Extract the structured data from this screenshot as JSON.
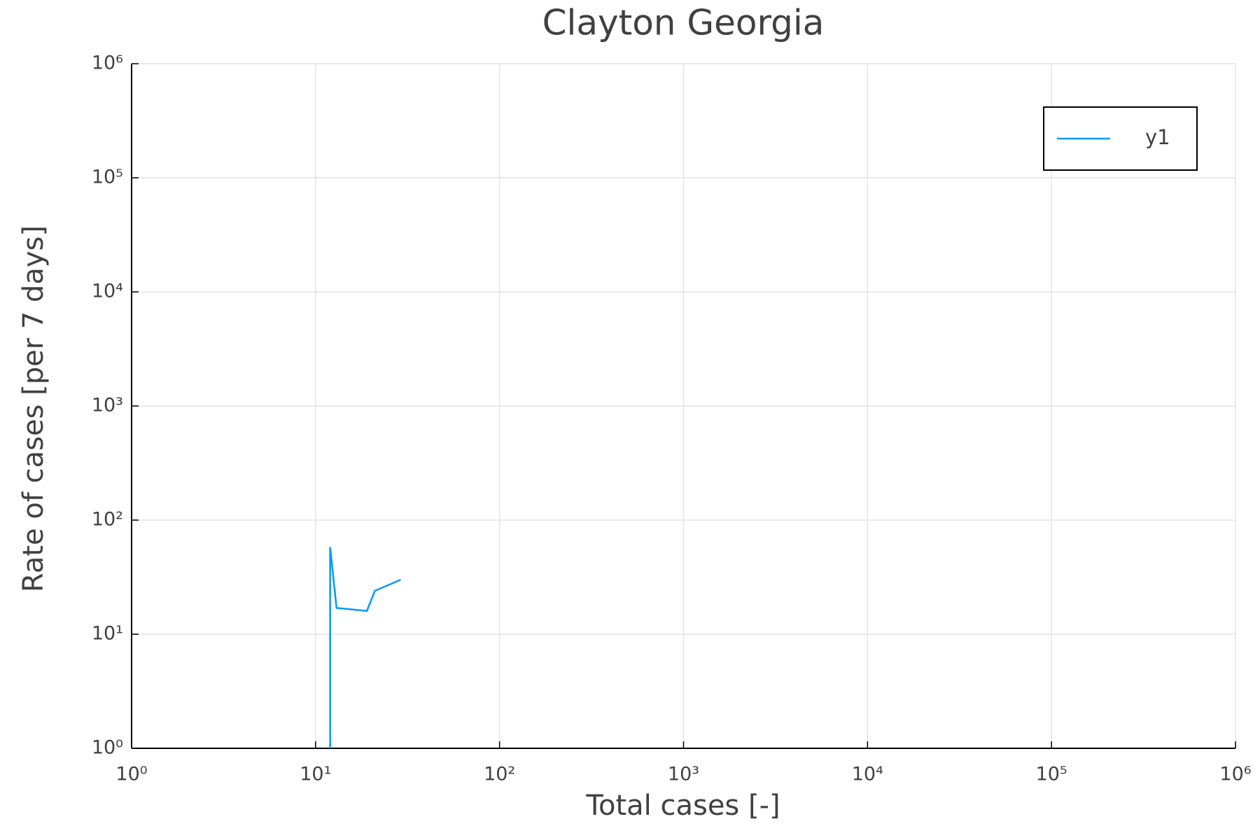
{
  "chart_data": {
    "type": "line",
    "title": "Clayton Georgia",
    "x_label": "Total cases [-]",
    "y_label": "Rate of cases [per 7 days]",
    "x": [
      12,
      12,
      13,
      19,
      21,
      29
    ],
    "series": [
      {
        "name": "y1",
        "color": "#009af9",
        "values": [
          1,
          58,
          17,
          16,
          24,
          30
        ]
      }
    ],
    "xscale": "log",
    "yscale": "log",
    "xlim": [
      1,
      1000000
    ],
    "ylim": [
      1,
      1000000
    ],
    "xticks": [
      {
        "value": 1,
        "label": "10⁰"
      },
      {
        "value": 10,
        "label": "10¹"
      },
      {
        "value": 100,
        "label": "10²"
      },
      {
        "value": 1000,
        "label": "10³"
      },
      {
        "value": 10000,
        "label": "10⁴"
      },
      {
        "value": 100000,
        "label": "10⁵"
      },
      {
        "value": 1000000,
        "label": "10⁶"
      }
    ],
    "yticks": [
      {
        "value": 1,
        "label": "10⁰"
      },
      {
        "value": 10,
        "label": "10¹"
      },
      {
        "value": 100,
        "label": "10²"
      },
      {
        "value": 1000,
        "label": "10³"
      },
      {
        "value": 10000,
        "label": "10⁴"
      },
      {
        "value": 100000,
        "label": "10⁵"
      },
      {
        "value": 1000000,
        "label": "10⁶"
      }
    ],
    "grid": true,
    "legend": "top-right"
  }
}
